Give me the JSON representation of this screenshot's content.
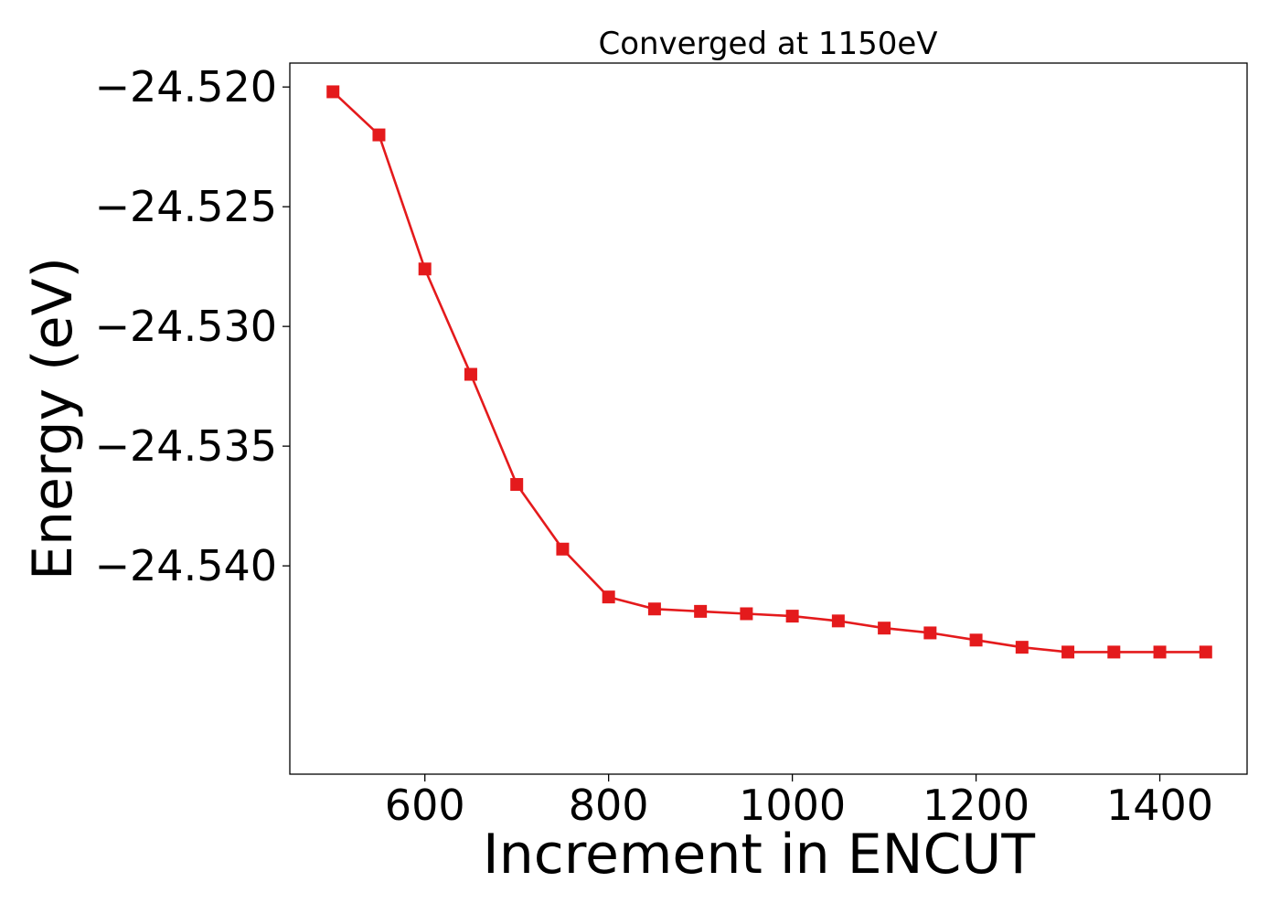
{
  "chart_data": {
    "type": "line",
    "title": "Converged at 1150eV",
    "xlabel": "Increment in ENCUT",
    "ylabel": "Energy (eV)",
    "xlim": [
      453,
      1495
    ],
    "ylim": [
      -24.5487,
      -24.519
    ],
    "xticks": [
      600,
      800,
      1000,
      1200,
      1400
    ],
    "xtick_labels": [
      "600",
      "800",
      "1000",
      "1200",
      "1400"
    ],
    "yticks": [
      -24.52,
      -24.525,
      -24.53,
      -24.535,
      -24.54
    ],
    "ytick_labels": [
      "−24.520",
      "−24.525",
      "−24.530",
      "−24.535",
      "−24.540"
    ],
    "grid": false,
    "color": "#e41a1c",
    "marker": "square",
    "series": [
      {
        "x": [
          500,
          550,
          600,
          650,
          700,
          750,
          800,
          850,
          900,
          950,
          1000,
          1050,
          1100,
          1150,
          1200,
          1250,
          1300,
          1350,
          1400,
          1450
        ],
        "y": [
          -24.5202,
          -24.522,
          -24.5276,
          -24.532,
          -24.5366,
          -24.5393,
          -24.5413,
          -24.5418,
          -24.5419,
          -24.542,
          -24.5421,
          -24.5423,
          -24.5426,
          -24.5428,
          -24.5431,
          -24.5434,
          -24.5436,
          -24.5436,
          -24.5436,
          -24.5436
        ]
      }
    ]
  }
}
